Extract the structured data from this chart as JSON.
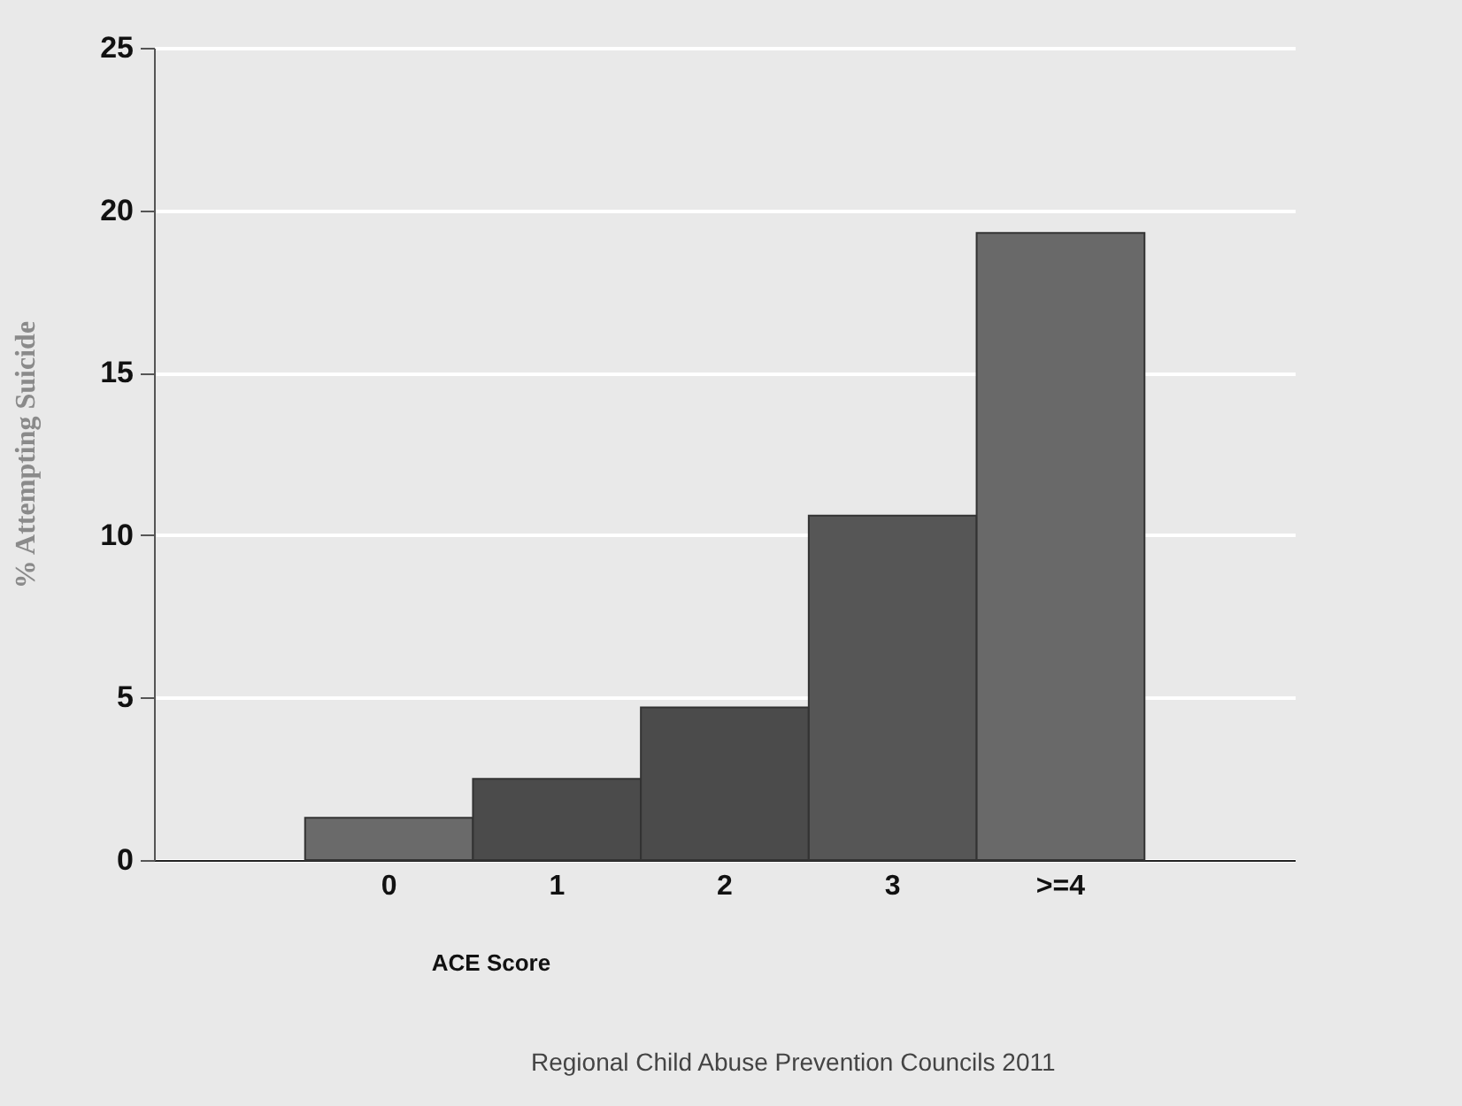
{
  "chart_data": {
    "type": "bar",
    "xlabel": "ACE Score",
    "ylabel": "% Attempting Suicide",
    "categories": [
      "0",
      "1",
      "2",
      "3",
      ">=4"
    ],
    "values": [
      1.3,
      2.5,
      4.7,
      10.6,
      19.3
    ],
    "colors": [
      "#6a6a6a",
      "#4b4b4b",
      "#4b4b4b",
      "#565656",
      "#696969"
    ],
    "ylim": [
      0,
      25
    ],
    "yticks": [
      0,
      5,
      10,
      15,
      20,
      25
    ],
    "grid": "y",
    "annotations": [
      "Regional Child Abuse Prevention Councils 2011"
    ]
  }
}
